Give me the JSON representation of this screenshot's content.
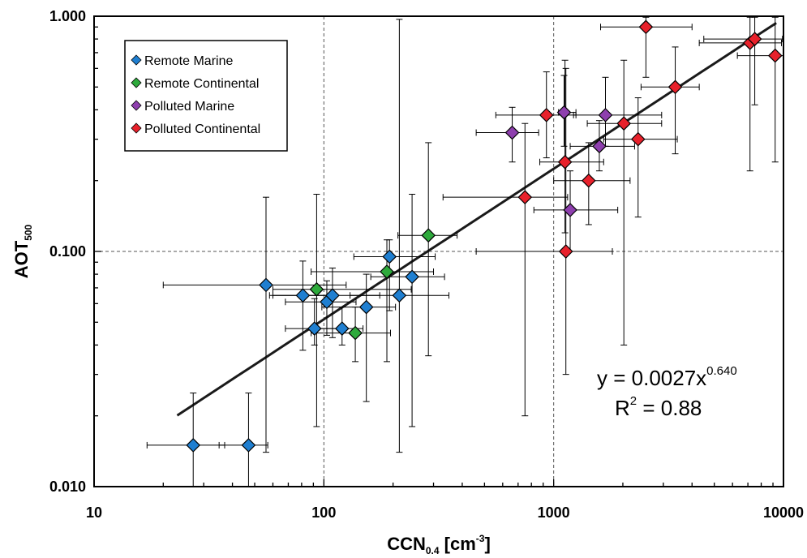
{
  "chart_data": {
    "type": "scatter",
    "x_scale": "log",
    "y_scale": "log",
    "xlim": [
      10,
      10000
    ],
    "ylim": [
      0.01,
      1
    ],
    "x_ticks": [
      "10",
      "100",
      "1000",
      "10000"
    ],
    "y_ticks": [
      "0.010",
      "0.100",
      "1.000"
    ],
    "xlabel": {
      "main": "CCN",
      "sub": "0.4",
      "rest1": " [cm",
      "sup": "-3",
      "rest2": "]"
    },
    "ylabel": {
      "main": "AOT",
      "sub": "500"
    },
    "grid": "dashed at major decades",
    "legend_position": "top-left",
    "annotation": {
      "line1_main": "y = 0.0027x",
      "line1_sup": "0.640",
      "line2_a": "R",
      "line2_sup": "2",
      "line2_b": " = 0.88"
    },
    "fit": {
      "type": "power",
      "a": 0.0027,
      "b": 0.64,
      "x_range": [
        23,
        9300
      ]
    },
    "series": [
      {
        "name": "Remote Marine",
        "color": "#1f7fd1",
        "points": [
          {
            "x": 27,
            "y": 0.015,
            "xerr": [
              17,
              37
            ],
            "yerr": [
              0.0098,
              0.025
            ]
          },
          {
            "x": 47,
            "y": 0.015,
            "xerr": [
              35,
              57
            ],
            "yerr": [
              0.0098,
              0.025
            ]
          },
          {
            "x": 56,
            "y": 0.072,
            "xerr": [
              20,
              125
            ],
            "yerr": [
              0.014,
              0.17
            ]
          },
          {
            "x": 81,
            "y": 0.065,
            "xerr": [
              58,
              113
            ],
            "yerr": [
              0.038,
              0.091
            ]
          },
          {
            "x": 91,
            "y": 0.047,
            "xerr": [
              68,
              118
            ],
            "yerr": [
              0.04,
              0.063
            ]
          },
          {
            "x": 103,
            "y": 0.061,
            "xerr": [
              68,
              138
            ],
            "yerr": [
              0.044,
              0.075
            ]
          },
          {
            "x": 109,
            "y": 0.065,
            "xerr": [
              60,
              175
            ],
            "yerr": [
              0.043,
              0.085
            ]
          },
          {
            "x": 120,
            "y": 0.047,
            "xerr": [
              93,
              148
            ],
            "yerr": [
              0.04,
              0.058
            ]
          },
          {
            "x": 153,
            "y": 0.058,
            "xerr": [
              98,
              205
            ],
            "yerr": [
              0.023,
              0.08
            ]
          },
          {
            "x": 193,
            "y": 0.095,
            "xerr": [
              135,
              305
            ],
            "yerr": [
              0.056,
              0.112
            ]
          },
          {
            "x": 213,
            "y": 0.065,
            "xerr": [
              130,
              350
            ],
            "yerr": [
              0.014,
              0.97
            ]
          },
          {
            "x": 242,
            "y": 0.078,
            "xerr": [
              160,
              335
            ],
            "yerr": [
              0.018,
              0.175
            ]
          }
        ]
      },
      {
        "name": "Remote Continental",
        "color": "#2eaa3c",
        "points": [
          {
            "x": 93,
            "y": 0.069,
            "xerr": [
              60,
              240
            ],
            "yerr": [
              0.018,
              0.175
            ]
          },
          {
            "x": 137,
            "y": 0.045,
            "xerr": [
              88,
              195
            ],
            "yerr": [
              0.034,
              0.058
            ]
          },
          {
            "x": 188,
            "y": 0.082,
            "xerr": [
              88,
              300
            ],
            "yerr": [
              0.034,
              0.112
            ]
          },
          {
            "x": 285,
            "y": 0.117,
            "xerr": [
              210,
              380
            ],
            "yerr": [
              0.036,
              0.29
            ]
          }
        ]
      },
      {
        "name": "Polluted Marine",
        "color": "#8e3fae",
        "points": [
          {
            "x": 660,
            "y": 0.32,
            "xerr": [
              460,
              860
            ],
            "yerr": [
              0.24,
              0.41
            ]
          },
          {
            "x": 1110,
            "y": 0.39,
            "xerr": [
              1050,
              1250
            ],
            "yerr": [
              0.28,
              0.56
            ]
          },
          {
            "x": 1180,
            "y": 0.15,
            "xerr": [
              820,
              1900
            ],
            "yerr": [
              0.1,
              0.22
            ]
          },
          {
            "x": 1580,
            "y": 0.28,
            "xerr": [
              1180,
              2250
            ],
            "yerr": [
              0.22,
              0.36
            ]
          },
          {
            "x": 1680,
            "y": 0.38,
            "xerr": [
              1220,
              2950
            ],
            "yerr": [
              0.28,
              0.55
            ]
          }
        ]
      },
      {
        "name": "Polluted Continental",
        "color": "#e8212b",
        "points": [
          {
            "x": 750,
            "y": 0.17,
            "xerr": [
              330,
              1150
            ],
            "yerr": [
              0.02,
              0.35
            ]
          },
          {
            "x": 930,
            "y": 0.38,
            "xerr": [
              560,
              1250
            ],
            "yerr": [
              0.25,
              0.58
            ]
          },
          {
            "x": 1120,
            "y": 0.24,
            "xerr": [
              870,
              1650
            ],
            "yerr": [
              0.12,
              0.65
            ]
          },
          {
            "x": 1130,
            "y": 0.1,
            "xerr": [
              460,
              1800
            ],
            "yerr": [
              0.03,
              0.6
            ]
          },
          {
            "x": 1420,
            "y": 0.2,
            "xerr": [
              1000,
              2150
            ],
            "yerr": [
              0.13,
              0.29
            ]
          },
          {
            "x": 2020,
            "y": 0.35,
            "xerr": [
              1400,
              2950
            ],
            "yerr": [
              0.04,
              0.65
            ]
          },
          {
            "x": 2330,
            "y": 0.3,
            "xerr": [
              1650,
              3450
            ],
            "yerr": [
              0.14,
              0.45
            ]
          },
          {
            "x": 2520,
            "y": 0.9,
            "xerr": [
              1600,
              4000
            ],
            "yerr": [
              0.55,
              0.99
            ]
          },
          {
            "x": 3380,
            "y": 0.5,
            "xerr": [
              2400,
              4300
            ],
            "yerr": [
              0.26,
              0.74
            ]
          },
          {
            "x": 7150,
            "y": 0.77,
            "xerr": [
              4300,
              9800
            ],
            "yerr": [
              0.22,
              0.99
            ]
          },
          {
            "x": 7500,
            "y": 0.8,
            "xerr": [
              4500,
              9900
            ],
            "yerr": [
              0.42,
              0.99
            ]
          },
          {
            "x": 9200,
            "y": 0.68,
            "xerr": [
              6300,
              9990
            ],
            "yerr": [
              0.24,
              0.99
            ]
          }
        ]
      }
    ]
  }
}
